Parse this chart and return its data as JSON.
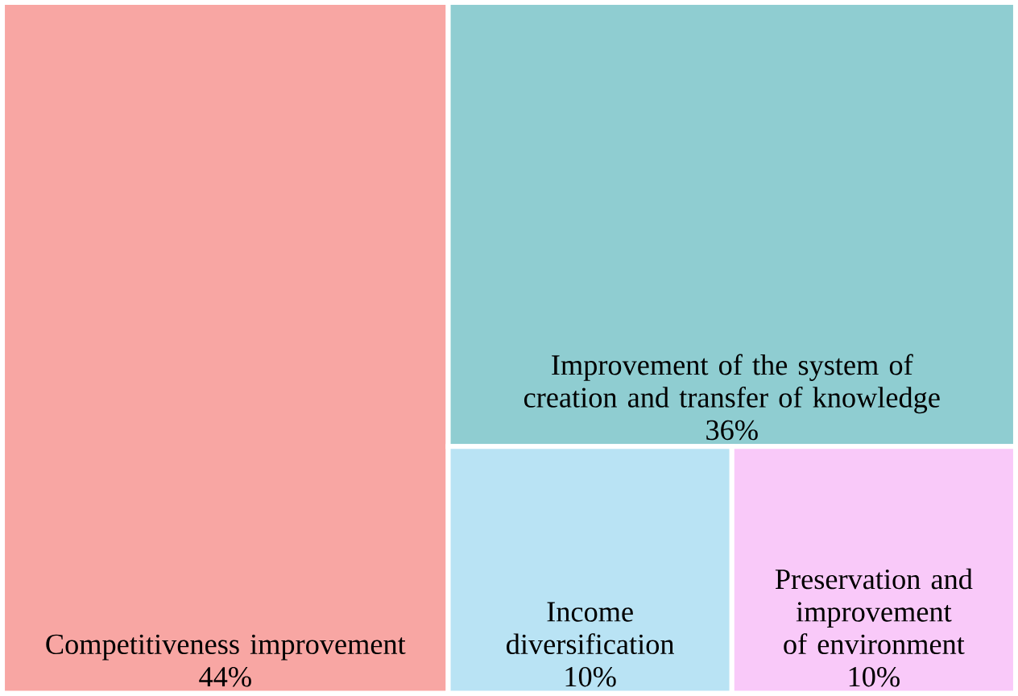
{
  "chart_data": {
    "type": "other",
    "categories": [
      "Competitiveness improvement",
      "Improvement of the system of creation and transfer of knowledge",
      "Income diversification",
      "Preservation and improvement of environment"
    ],
    "values": [
      44,
      36,
      10,
      10
    ],
    "value_labels": [
      "44%",
      "36%",
      "10%",
      "10%"
    ],
    "colors": [
      "#f8a6a3",
      "#8fcdd1",
      "#b9e3f4",
      "#f9c9f9"
    ]
  }
}
